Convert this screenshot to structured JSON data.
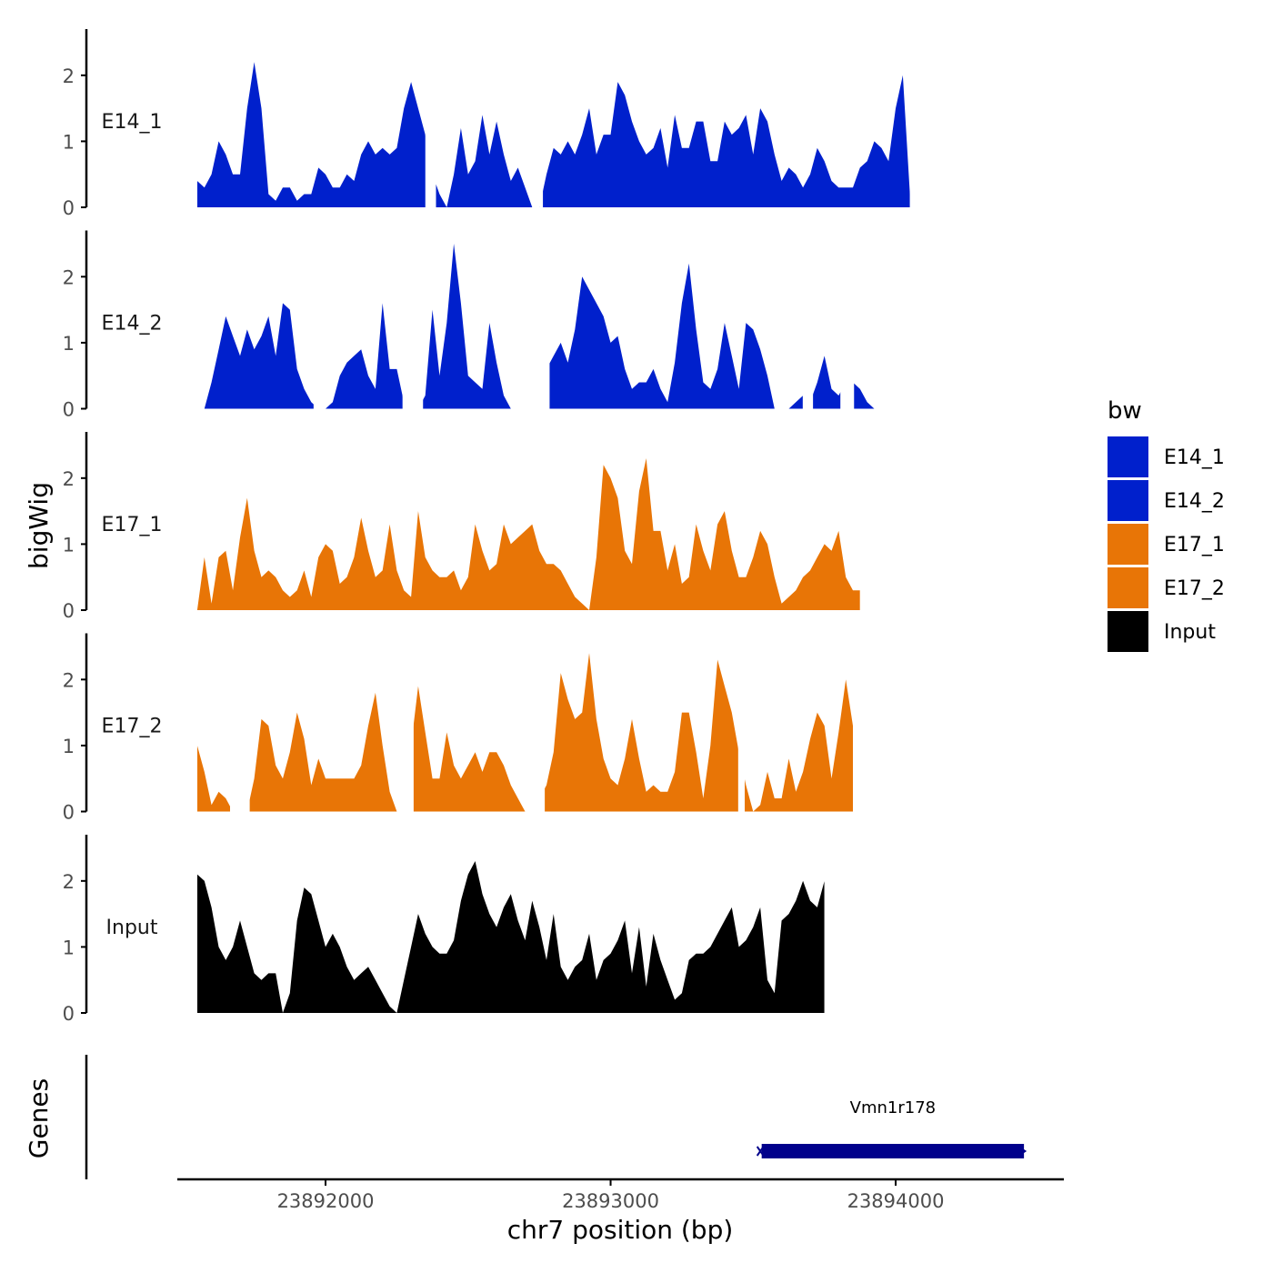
{
  "chart_data": {
    "type": "area",
    "title": "",
    "xlabel": "chr7 position (bp)",
    "ylabel": "bigWig",
    "genes_label": "Genes",
    "xlim": [
      23891480,
      23894590
    ],
    "x_ticks": [
      23892000,
      23893000,
      23894000
    ],
    "x_tick_labels": [
      "23892000",
      "23893000",
      "23894000"
    ],
    "ylim": [
      0,
      2.7
    ],
    "y_ticks": [
      0,
      1,
      2
    ],
    "y_tick_labels": [
      "0",
      "1",
      "2"
    ],
    "legend": {
      "title": "bw",
      "position": "right",
      "entries": [
        {
          "label": "E14_1",
          "color": "#0020CC"
        },
        {
          "label": "E14_2",
          "color": "#0020CC"
        },
        {
          "label": "E17_1",
          "color": "#E87506"
        },
        {
          "label": "E17_2",
          "color": "#E87506"
        },
        {
          "label": "Input",
          "color": "#000000"
        }
      ]
    },
    "x_start": 23891550,
    "x_step": 25,
    "series": [
      {
        "name": "E14_1",
        "color": "#0020CC",
        "values": [
          0.4,
          0.3,
          0.5,
          1.0,
          0.8,
          0.5,
          0.5,
          1.5,
          2.2,
          1.5,
          0.2,
          0.1,
          0.3,
          0.3,
          0.1,
          0.2,
          0.2,
          0.6,
          0.5,
          0.3,
          0.3,
          0.5,
          0.4,
          0.8,
          1.0,
          0.8,
          0.9,
          0.8,
          0.9,
          1.5,
          1.9,
          1.5,
          1.1,
          0.5,
          0.2,
          0.0,
          0.5,
          1.2,
          0.5,
          0.7,
          1.4,
          0.8,
          1.3,
          0.8,
          0.4,
          0.6,
          0.3,
          0.0,
          0.0,
          0.5,
          0.9,
          0.8,
          1.0,
          0.8,
          1.1,
          1.5,
          0.8,
          1.1,
          1.1,
          1.9,
          1.7,
          1.3,
          1.0,
          0.8,
          0.9,
          1.2,
          0.6,
          1.4,
          0.9,
          0.9,
          1.3,
          1.3,
          0.7,
          0.7,
          1.3,
          1.1,
          1.2,
          1.4,
          0.8,
          1.5,
          1.3,
          0.8,
          0.4,
          0.6,
          0.5,
          0.3,
          0.5,
          0.9,
          0.7,
          0.4,
          0.3,
          0.3,
          0.3,
          0.6,
          0.7,
          1.0,
          0.9,
          0.7,
          1.5,
          2.0,
          0.2
        ],
        "dropout": [
          [
            0.32,
            0.335
          ],
          [
            0.48,
            0.485
          ]
        ]
      },
      {
        "name": "E14_2",
        "color": "#0020CC",
        "values": [
          0.0,
          0.0,
          0.4,
          0.9,
          1.4,
          1.1,
          0.8,
          1.2,
          0.9,
          1.1,
          1.4,
          0.8,
          1.6,
          1.5,
          0.6,
          0.3,
          0.1,
          0.0,
          0.0,
          0.1,
          0.5,
          0.7,
          0.8,
          0.9,
          0.5,
          0.3,
          1.6,
          0.6,
          0.6,
          0.1,
          0.0,
          0.0,
          0.2,
          1.5,
          0.5,
          1.3,
          2.5,
          1.6,
          0.5,
          0.4,
          0.3,
          1.3,
          0.7,
          0.2,
          0.0,
          0.0,
          0.0,
          0.0,
          0.3,
          0.6,
          0.8,
          1.0,
          0.7,
          1.2,
          2.0,
          1.8,
          1.6,
          1.4,
          1.0,
          1.1,
          0.6,
          0.3,
          0.4,
          0.4,
          0.6,
          0.3,
          0.1,
          0.7,
          1.6,
          2.2,
          1.2,
          0.4,
          0.3,
          0.6,
          1.3,
          0.8,
          0.3,
          1.3,
          1.2,
          0.9,
          0.5,
          0.0,
          0.0,
          0.0,
          0.1,
          0.2,
          0.1,
          0.4,
          0.8,
          0.3,
          0.2,
          0.4,
          0.4,
          0.3,
          0.1,
          0.0,
          0.0
        ],
        "dropout": [
          [
            0.0,
            0.01
          ],
          [
            0.17,
            0.18
          ],
          [
            0.3,
            0.33
          ],
          [
            0.475,
            0.515
          ],
          [
            0.885,
            0.9
          ],
          [
            0.94,
            0.96
          ]
        ]
      },
      {
        "name": "E17_1",
        "color": "#E87506",
        "values": [
          0.0,
          0.8,
          0.1,
          0.8,
          0.9,
          0.3,
          1.1,
          1.7,
          0.9,
          0.5,
          0.6,
          0.5,
          0.3,
          0.2,
          0.3,
          0.6,
          0.2,
          0.8,
          1.0,
          0.9,
          0.4,
          0.5,
          0.8,
          1.4,
          0.9,
          0.5,
          0.6,
          1.3,
          0.6,
          0.3,
          0.2,
          1.5,
          0.8,
          0.6,
          0.5,
          0.5,
          0.6,
          0.3,
          0.5,
          1.3,
          0.9,
          0.6,
          0.7,
          1.3,
          1.0,
          1.1,
          1.2,
          1.3,
          0.9,
          0.7,
          0.7,
          0.6,
          0.4,
          0.2,
          0.1,
          0.0,
          0.8,
          2.2,
          2.0,
          1.7,
          0.9,
          0.7,
          1.8,
          2.3,
          1.2,
          1.2,
          0.6,
          1.0,
          0.4,
          0.5,
          1.3,
          0.9,
          0.6,
          1.3,
          1.5,
          0.9,
          0.5,
          0.5,
          0.8,
          1.2,
          1.0,
          0.5,
          0.1,
          0.2,
          0.3,
          0.5,
          0.6,
          0.8,
          1.0,
          0.9,
          1.2,
          0.5,
          0.3,
          0.3
        ],
        "dropout": []
      },
      {
        "name": "E17_2",
        "color": "#E87506",
        "values": [
          1.0,
          0.6,
          0.1,
          0.3,
          0.2,
          0.0,
          0.0,
          0.0,
          0.5,
          1.4,
          1.3,
          0.7,
          0.5,
          0.9,
          1.5,
          1.1,
          0.4,
          0.8,
          0.5,
          0.5,
          0.5,
          0.5,
          0.5,
          0.7,
          1.3,
          1.8,
          1.0,
          0.3,
          0.0,
          0.0,
          1.0,
          1.9,
          1.2,
          0.5,
          0.5,
          1.2,
          0.7,
          0.5,
          0.7,
          0.9,
          0.6,
          0.9,
          0.9,
          0.7,
          0.4,
          0.2,
          0.0,
          0.0,
          0.2,
          0.4,
          0.9,
          2.1,
          1.7,
          1.4,
          1.5,
          2.4,
          1.4,
          0.8,
          0.5,
          0.4,
          0.8,
          1.4,
          0.8,
          0.3,
          0.4,
          0.3,
          0.3,
          0.6,
          1.5,
          1.5,
          0.9,
          0.2,
          1.0,
          2.3,
          1.9,
          1.5,
          0.9,
          0.4,
          0.0,
          0.1,
          0.6,
          0.2,
          0.2,
          0.8,
          0.3,
          0.6,
          1.1,
          1.5,
          1.3,
          0.5,
          1.2,
          2.0,
          1.3
        ],
        "dropout": [
          [
            0.05,
            0.08
          ],
          [
            0.31,
            0.33
          ],
          [
            0.51,
            0.53
          ],
          [
            0.825,
            0.835
          ]
        ]
      },
      {
        "name": "Input",
        "color": "#000000",
        "values": [
          2.1,
          2.0,
          1.6,
          1.0,
          0.8,
          1.0,
          1.4,
          1.0,
          0.6,
          0.5,
          0.6,
          0.6,
          0.0,
          0.3,
          1.4,
          1.9,
          1.8,
          1.4,
          1.0,
          1.2,
          1.0,
          0.7,
          0.5,
          0.6,
          0.7,
          0.5,
          0.3,
          0.1,
          0.0,
          0.5,
          1.0,
          1.5,
          1.2,
          1.0,
          0.9,
          0.9,
          1.1,
          1.7,
          2.1,
          2.3,
          1.8,
          1.5,
          1.3,
          1.6,
          1.8,
          1.4,
          1.1,
          1.7,
          1.3,
          0.8,
          1.5,
          0.7,
          0.5,
          0.7,
          0.8,
          1.2,
          0.5,
          0.8,
          0.9,
          1.1,
          1.4,
          0.6,
          1.3,
          0.4,
          1.2,
          0.8,
          0.5,
          0.2,
          0.3,
          0.8,
          0.9,
          0.9,
          1.0,
          1.2,
          1.4,
          1.6,
          1.0,
          1.1,
          1.3,
          1.6,
          0.5,
          0.3,
          1.4,
          1.5,
          1.7,
          2.0,
          1.7,
          1.6,
          2.0
        ],
        "dropout": []
      }
    ],
    "genes": [
      {
        "name": "Vmn1r178",
        "start": 23893530,
        "end": 23894450,
        "strand": "-",
        "color": "#00008B"
      }
    ]
  }
}
